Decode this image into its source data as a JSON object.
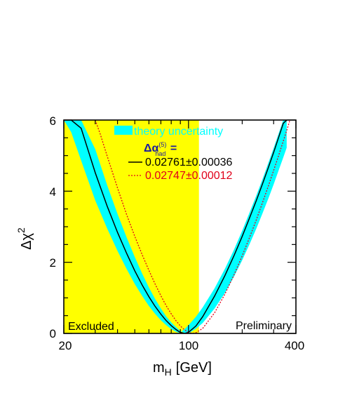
{
  "chart_data": {
    "type": "line",
    "xscale": "log",
    "xlim": [
      20,
      400
    ],
    "ylim": [
      0,
      6
    ],
    "xticks": [
      20,
      100,
      400
    ],
    "x_tick_labels": [
      "20",
      "100",
      "400"
    ],
    "yticks": [
      0,
      2,
      4,
      6
    ],
    "y_tick_labels": [
      "0",
      "2",
      "4",
      "6"
    ],
    "xlabel_main": "m",
    "xlabel_sub": "H",
    "xlabel_unit": "[GeV]",
    "ylabel_main": "Δχ",
    "ylabel_sup": "2",
    "excluded_region": {
      "x_from": 20,
      "x_to": 114.4,
      "label": "Excluded",
      "color": "#ffff00"
    },
    "corner_label": "Preliminary",
    "legend": {
      "band_label": "theory uncertainty",
      "band_color": "#00ffff",
      "header_main": "Δα",
      "header_sub": "had",
      "header_sup": "(5)",
      "header_suffix": " =",
      "entries": [
        {
          "label": "0.02761±0.00036",
          "color": "#000000",
          "style": "solid"
        },
        {
          "label": "0.02747±0.00012",
          "color": "#e0001a",
          "style": "dotted"
        }
      ]
    },
    "series": [
      {
        "role": "band_upper",
        "x": [
          20,
          22,
          25,
          30,
          35,
          40,
          45,
          50,
          55,
          60,
          65,
          70,
          75,
          80,
          85,
          88,
          90,
          95,
          100,
          110,
          120,
          140,
          160,
          180,
          200,
          220,
          240,
          260,
          280,
          300,
          320,
          340,
          355
        ],
        "y": [
          6.0,
          5.66,
          4.86,
          3.74,
          2.95,
          2.32,
          1.81,
          1.39,
          1.05,
          0.77,
          0.55,
          0.37,
          0.23,
          0.12,
          0.05,
          0.02,
          0.03,
          0.12,
          0.23,
          0.47,
          0.73,
          1.27,
          1.82,
          2.36,
          2.89,
          3.4,
          3.88,
          4.34,
          4.79,
          5.21,
          5.62,
          6.0,
          6.0
        ]
      },
      {
        "role": "band_lower",
        "x": [
          20,
          22,
          25,
          30,
          35,
          40,
          45,
          50,
          55,
          60,
          65,
          70,
          75,
          80,
          85,
          88,
          90,
          95,
          100,
          110,
          120,
          140,
          160,
          180,
          200,
          220,
          240,
          260,
          280,
          300,
          320,
          340,
          355
        ],
        "y": [
          6.0,
          6.0,
          6.0,
          5.18,
          4.17,
          3.36,
          2.7,
          2.15,
          1.68,
          1.29,
          0.97,
          0.7,
          0.48,
          0.31,
          0.18,
          0.11,
          0.07,
          0.01,
          0.0,
          0.13,
          0.29,
          0.7,
          1.14,
          1.6,
          2.06,
          2.51,
          2.95,
          3.38,
          3.79,
          4.19,
          4.58,
          4.95,
          5.22
        ]
      },
      {
        "name": "0.02761±0.00036",
        "role": "central",
        "x": [
          20,
          22,
          25,
          30,
          35,
          40,
          45,
          50,
          55,
          60,
          65,
          70,
          75,
          80,
          85,
          88,
          90,
          95,
          100,
          110,
          120,
          140,
          160,
          180,
          200,
          220,
          240,
          260,
          280,
          300,
          320,
          340,
          356
        ],
        "y": [
          6.0,
          6.0,
          5.77,
          4.52,
          3.58,
          2.84,
          2.25,
          1.76,
          1.36,
          1.03,
          0.76,
          0.54,
          0.36,
          0.22,
          0.11,
          0.06,
          0.03,
          0.0,
          0.03,
          0.21,
          0.47,
          1.05,
          1.63,
          2.19,
          2.73,
          3.25,
          3.74,
          4.21,
          4.66,
          5.09,
          5.51,
          5.91,
          6.0
        ]
      },
      {
        "name": "0.02747±0.00012",
        "role": "alternative",
        "x": [
          30,
          32,
          35,
          40,
          45,
          50,
          55,
          60,
          65,
          70,
          75,
          80,
          85,
          90,
          95,
          100,
          105,
          110,
          120,
          140,
          160,
          180,
          200,
          220,
          240,
          260,
          280,
          300,
          320,
          340,
          360,
          370
        ],
        "y": [
          6.0,
          5.61,
          4.99,
          4.09,
          3.34,
          2.73,
          2.21,
          1.77,
          1.39,
          1.06,
          0.78,
          0.55,
          0.36,
          0.21,
          0.1,
          0.03,
          0.0,
          0.02,
          0.14,
          0.58,
          1.11,
          1.65,
          2.18,
          2.7,
          3.2,
          3.68,
          4.14,
          4.58,
          5.0,
          5.41,
          5.8,
          6.0
        ]
      }
    ]
  }
}
